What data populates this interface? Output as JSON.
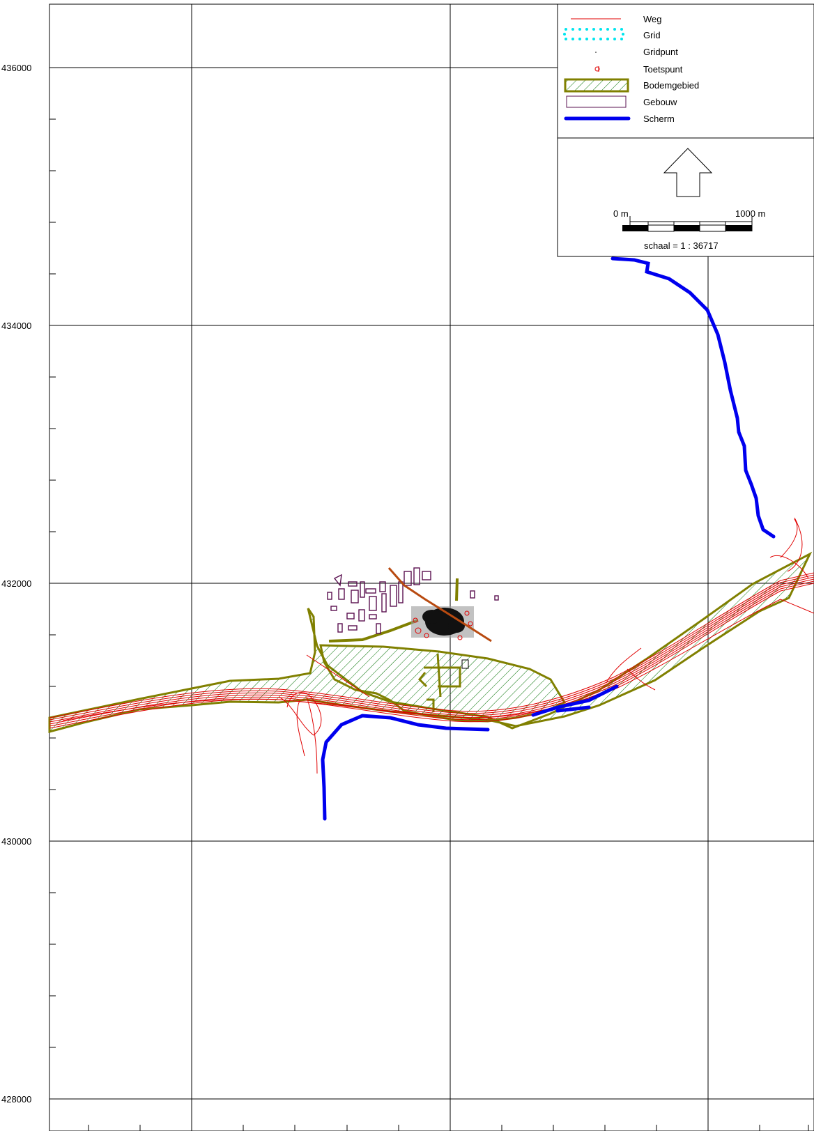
{
  "map": {
    "y_axis_labels": [
      "436000",
      "434000",
      "432000",
      "430000",
      "428000"
    ]
  },
  "legend": {
    "items": [
      {
        "label": "Weg",
        "icon": "red-thin-line",
        "color": "#e00000"
      },
      {
        "label": "Grid",
        "icon": "cyan-dotted-box",
        "color": "#00e5ee"
      },
      {
        "label": "Gridpunt",
        "icon": "small-dot",
        "color": "#000000"
      },
      {
        "label": "Toetspunt",
        "icon": "red-target",
        "color": "#e00000"
      },
      {
        "label": "Bodemgebied",
        "icon": "green-hatched-box",
        "color": "#808000"
      },
      {
        "label": "Gebouw",
        "icon": "purple-outline-box",
        "color": "#5a1050"
      },
      {
        "label": "Scherm",
        "icon": "blue-thick-line",
        "color": "#0000ee"
      }
    ]
  },
  "scale": {
    "north_arrow": "north-arrow-icon",
    "start_label": "0 m",
    "end_label": "1000 m",
    "ratio_label": "schaal = 1 : 36717"
  },
  "colors": {
    "road": "#e00000",
    "screen": "#0000ee",
    "soil_outline": "#808000",
    "soil_hatch": "#007000",
    "building": "#5a1050",
    "grid": "#000000"
  }
}
